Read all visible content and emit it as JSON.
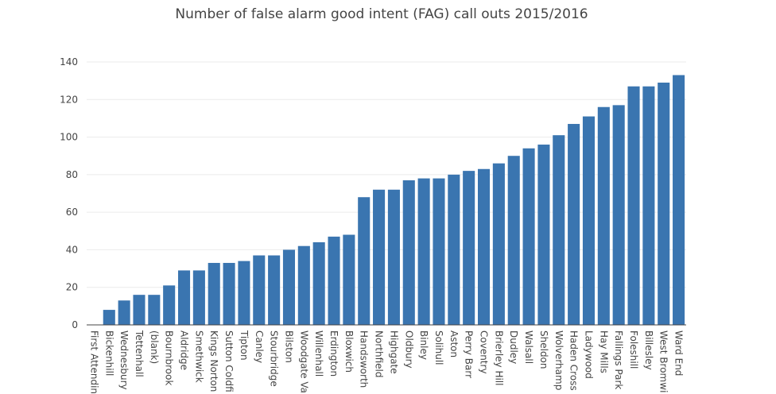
{
  "chart_data": {
    "type": "bar",
    "title": "Number of false alarm good intent (FAG) call outs 2015/2016",
    "xlabel": "",
    "ylabel": "",
    "ylim": [
      0,
      140
    ],
    "yticks": [
      0,
      20,
      40,
      60,
      80,
      100,
      120,
      140
    ],
    "grid": true,
    "bar_color": "#3a75b0",
    "categories": [
      "First Attending",
      "Bickenhill",
      "Wednesbury",
      "Tettenhall",
      "(blank)",
      "Bournbrook",
      "Aldridge",
      "Smethwick",
      "Kings Norton",
      "Sutton Coldfi",
      "Tipton",
      "Canley",
      "Stourbridge",
      "Bilston",
      "Woodgate Va",
      "Willenhall",
      "Erdington",
      "Bloxwich",
      "Handsworth",
      "Northfield",
      "Highgate",
      "Oldbury",
      "Binley",
      "Solihull",
      "Aston",
      "Perry Barr",
      "Coventry",
      "Brierley Hill",
      "Dudley",
      "Walsall",
      "Sheldon",
      "Wolverhamp",
      "Haden Cross",
      "Ladywood",
      "Hay Mills",
      "Fallings Park",
      "Foleshill",
      "Billesley",
      "West Bromwi",
      "Ward End"
    ],
    "values": [
      0,
      8,
      13,
      16,
      16,
      21,
      29,
      29,
      33,
      33,
      34,
      37,
      37,
      40,
      42,
      44,
      47,
      48,
      68,
      72,
      72,
      77,
      78,
      78,
      80,
      82,
      83,
      86,
      90,
      94,
      96,
      101,
      107,
      111,
      116,
      117,
      127,
      127,
      129,
      133
    ]
  }
}
